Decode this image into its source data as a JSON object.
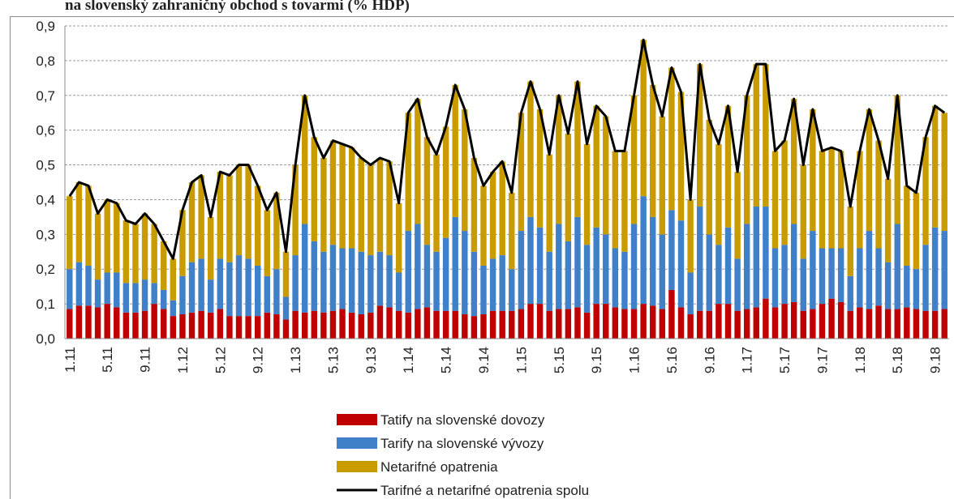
{
  "chart_data": {
    "type": "bar",
    "stacked": true,
    "title": "na slovenský zahraničný obchod s tovarmi (% HDP)",
    "categories": [
      "1.11",
      null,
      null,
      null,
      "5.11",
      null,
      null,
      null,
      "9.11",
      null,
      null,
      null,
      "1.12",
      null,
      null,
      null,
      "5.12",
      null,
      null,
      null,
      "9.12",
      null,
      null,
      null,
      "1.13",
      null,
      null,
      null,
      "5.13",
      null,
      null,
      null,
      "9.13",
      null,
      null,
      null,
      "1.14",
      null,
      null,
      null,
      "5.14",
      null,
      null,
      null,
      "9.14",
      null,
      null,
      null,
      "1.15",
      null,
      null,
      null,
      "5.15",
      null,
      null,
      null,
      "9.15",
      null,
      null,
      null,
      "1.16",
      null,
      null,
      null,
      "5.16",
      null,
      null,
      null,
      "9.16",
      null,
      null,
      null,
      "1.17",
      null,
      null,
      null,
      "5.17",
      null,
      null,
      null,
      "9.17",
      null,
      null,
      null,
      "1.18",
      null,
      null,
      null,
      "5.18",
      null,
      null,
      null,
      "9.18",
      null
    ],
    "series": [
      {
        "name": "Tatify na slovenské dovozy",
        "color": "#c00000",
        "type": "bar",
        "values": [
          0.085,
          0.095,
          0.095,
          0.09,
          0.1,
          0.09,
          0.075,
          0.075,
          0.08,
          0.1,
          0.085,
          0.065,
          0.07,
          0.075,
          0.08,
          0.075,
          0.085,
          0.065,
          0.065,
          0.065,
          0.065,
          0.075,
          0.07,
          0.055,
          0.08,
          0.075,
          0.08,
          0.075,
          0.08,
          0.085,
          0.075,
          0.07,
          0.075,
          0.095,
          0.09,
          0.08,
          0.075,
          0.085,
          0.09,
          0.08,
          0.08,
          0.08,
          0.07,
          0.065,
          0.07,
          0.08,
          0.08,
          0.08,
          0.085,
          0.1,
          0.1,
          0.08,
          0.085,
          0.085,
          0.09,
          0.075,
          0.1,
          0.1,
          0.09,
          0.085,
          0.085,
          0.1,
          0.095,
          0.085,
          0.14,
          0.09,
          0.07,
          0.08,
          0.08,
          0.1,
          0.1,
          0.08,
          0.085,
          0.09,
          0.115,
          0.09,
          0.1,
          0.105,
          0.08,
          0.085,
          0.1,
          0.115,
          0.105,
          0.08,
          0.09,
          0.085,
          0.095,
          0.085,
          0.085,
          0.09,
          0.085,
          0.08,
          0.08,
          0.085
        ]
      },
      {
        "name": "Tarify na slovenské vývozy",
        "color": "#3f80c8",
        "type": "bar",
        "values": [
          0.115,
          0.125,
          0.115,
          0.08,
          0.09,
          0.1,
          0.085,
          0.085,
          0.09,
          0.06,
          0.055,
          0.045,
          0.11,
          0.145,
          0.15,
          0.095,
          0.145,
          0.155,
          0.175,
          0.165,
          0.145,
          0.105,
          0.13,
          0.065,
          0.16,
          0.255,
          0.2,
          0.175,
          0.19,
          0.175,
          0.185,
          0.18,
          0.165,
          0.155,
          0.15,
          0.11,
          0.235,
          0.245,
          0.18,
          0.17,
          0.21,
          0.27,
          0.24,
          0.185,
          0.14,
          0.15,
          0.16,
          0.12,
          0.225,
          0.25,
          0.22,
          0.17,
          0.245,
          0.195,
          0.26,
          0.195,
          0.22,
          0.2,
          0.17,
          0.165,
          0.245,
          0.31,
          0.255,
          0.215,
          0.23,
          0.25,
          0.12,
          0.3,
          0.22,
          0.17,
          0.22,
          0.15,
          0.245,
          0.29,
          0.265,
          0.17,
          0.17,
          0.225,
          0.15,
          0.225,
          0.16,
          0.145,
          0.155,
          0.1,
          0.17,
          0.225,
          0.165,
          0.135,
          0.245,
          0.12,
          0.115,
          0.19,
          0.24,
          0.225
        ]
      },
      {
        "name": "Netarifné opatrenia",
        "color": "#c89b00",
        "type": "bar",
        "values": [
          0.21,
          0.23,
          0.23,
          0.19,
          0.21,
          0.2,
          0.18,
          0.17,
          0.19,
          0.17,
          0.14,
          0.12,
          0.19,
          0.23,
          0.24,
          0.18,
          0.25,
          0.25,
          0.26,
          0.27,
          0.23,
          0.19,
          0.22,
          0.13,
          0.26,
          0.37,
          0.3,
          0.27,
          0.3,
          0.3,
          0.29,
          0.27,
          0.26,
          0.27,
          0.27,
          0.2,
          0.34,
          0.36,
          0.31,
          0.28,
          0.32,
          0.38,
          0.35,
          0.27,
          0.23,
          0.25,
          0.27,
          0.22,
          0.34,
          0.39,
          0.34,
          0.28,
          0.37,
          0.31,
          0.39,
          0.29,
          0.35,
          0.34,
          0.28,
          0.29,
          0.37,
          0.45,
          0.38,
          0.34,
          0.41,
          0.37,
          0.21,
          0.41,
          0.33,
          0.29,
          0.35,
          0.25,
          0.37,
          0.41,
          0.41,
          0.28,
          0.3,
          0.36,
          0.27,
          0.35,
          0.28,
          0.29,
          0.28,
          0.2,
          0.28,
          0.35,
          0.31,
          0.24,
          0.37,
          0.23,
          0.22,
          0.31,
          0.35,
          0.34
        ]
      },
      {
        "name": "Tarifné a netarifné opatrenia spolu",
        "color": "#000000",
        "type": "line",
        "values": [
          0.41,
          0.45,
          0.44,
          0.36,
          0.4,
          0.39,
          0.34,
          0.33,
          0.36,
          0.33,
          0.28,
          0.23,
          0.37,
          0.45,
          0.47,
          0.35,
          0.48,
          0.47,
          0.5,
          0.5,
          0.44,
          0.37,
          0.42,
          0.25,
          0.5,
          0.7,
          0.58,
          0.52,
          0.57,
          0.56,
          0.55,
          0.52,
          0.5,
          0.52,
          0.51,
          0.39,
          0.65,
          0.69,
          0.58,
          0.53,
          0.61,
          0.73,
          0.66,
          0.52,
          0.44,
          0.48,
          0.51,
          0.42,
          0.65,
          0.74,
          0.66,
          0.53,
          0.7,
          0.59,
          0.74,
          0.56,
          0.67,
          0.64,
          0.54,
          0.54,
          0.7,
          0.86,
          0.73,
          0.64,
          0.78,
          0.71,
          0.4,
          0.79,
          0.63,
          0.56,
          0.67,
          0.48,
          0.7,
          0.79,
          0.79,
          0.54,
          0.57,
          0.69,
          0.5,
          0.66,
          0.54,
          0.55,
          0.54,
          0.38,
          0.54,
          0.66,
          0.57,
          0.46,
          0.7,
          0.44,
          0.42,
          0.58,
          0.67,
          0.65
        ]
      }
    ],
    "ylim": [
      0,
      0.9
    ],
    "yticks": [
      {
        "value": 0,
        "label": "0,0"
      },
      {
        "value": 0.1,
        "label": "0,1"
      },
      {
        "value": 0.2,
        "label": "0,2"
      },
      {
        "value": 0.3,
        "label": "0,3"
      },
      {
        "value": 0.4,
        "label": "0,4"
      },
      {
        "value": 0.5,
        "label": "0,5"
      },
      {
        "value": 0.6,
        "label": "0,6"
      },
      {
        "value": 0.7,
        "label": "0,7"
      },
      {
        "value": 0.8,
        "label": "0,8"
      },
      {
        "value": 0.9,
        "label": "0,9"
      }
    ],
    "grid": true,
    "legend": "bottom"
  }
}
